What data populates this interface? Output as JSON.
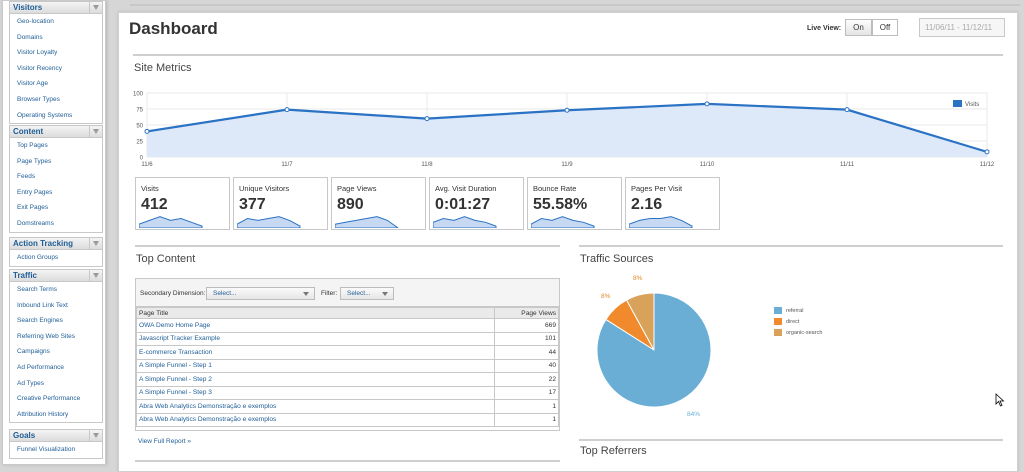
{
  "sidebar": {
    "groups": [
      {
        "title": "Visitors",
        "items": [
          "Geo-location",
          "Domains",
          "Visitor Loyalty",
          "Visitor Recency",
          "Visitor Age",
          "Browser Types",
          "Operating Systems"
        ]
      },
      {
        "title": "Content",
        "items": [
          "Top Pages",
          "Page Types",
          "Feeds",
          "Entry Pages",
          "Exit Pages",
          "Domstreams"
        ]
      },
      {
        "title": "Action Tracking",
        "items": [
          "Action Groups"
        ]
      },
      {
        "title": "Traffic",
        "items": [
          "Search Terms",
          "Inbound Link Text",
          "Search Engines",
          "Referring Web Sites",
          "Campaigns",
          "Ad Performance",
          "Ad Types",
          "Creative Performance",
          "Attribution History"
        ]
      },
      {
        "title": "Goals",
        "items": [
          "Funnel Visualization"
        ]
      }
    ]
  },
  "header": {
    "title": "Dashboard",
    "live_view_label": "Live View:",
    "on_label": "On",
    "off_label": "Off",
    "date_range": "11/06/11 - 11/12/11"
  },
  "site_metrics": {
    "title": "Site Metrics",
    "legend_label": "Visits"
  },
  "chart_data": {
    "type": "area",
    "x": [
      "11/6",
      "11/7",
      "11/8",
      "11/9",
      "11/10",
      "11/11",
      "11/12"
    ],
    "series": [
      {
        "name": "Visits",
        "values": [
          40,
          74,
          60,
          73,
          83,
          74,
          8
        ]
      }
    ],
    "ylim": [
      0,
      100
    ],
    "yticks": [
      0,
      25,
      50,
      75,
      100
    ],
    "grid": true,
    "legend_position": "top-right",
    "color": "#2a72c4"
  },
  "kpis": [
    {
      "label": "Visits",
      "value": "412"
    },
    {
      "label": "Unique Visitors",
      "value": "377"
    },
    {
      "label": "Page Views",
      "value": "890"
    },
    {
      "label": "Avg. Visit Duration",
      "value": "0:01:27"
    },
    {
      "label": "Bounce Rate",
      "value": "55.58%"
    },
    {
      "label": "Pages Per Visit",
      "value": "2.16"
    }
  ],
  "top_content": {
    "title": "Top Content",
    "secondary_dimension_label": "Secondary Dimension:",
    "secondary_select": "Select...",
    "filter_label": "Filter:",
    "filter_select": "Select...",
    "columns": [
      "Page Title",
      "Page Views"
    ],
    "rows": [
      {
        "title": "OWA Demo Home Page",
        "views": "669"
      },
      {
        "title": "Javascript Tracker Example",
        "views": "101"
      },
      {
        "title": "E-commerce Transaction",
        "views": "44"
      },
      {
        "title": "A Simple Funnel - Step 1",
        "views": "40"
      },
      {
        "title": "A Simple Funnel - Step 2",
        "views": "22"
      },
      {
        "title": "A Simple Funnel - Step 3",
        "views": "17"
      },
      {
        "title": "Abra Web Analytics Demonstração e exemplos",
        "views": "1"
      },
      {
        "title": "Abra Web Analytics Demonstração e exemplos",
        "views": "1"
      }
    ],
    "view_full_report": "View Full Report »"
  },
  "traffic_sources": {
    "title": "Traffic Sources",
    "chart": {
      "type": "pie",
      "slices": [
        {
          "label": "referral",
          "value": 84,
          "color": "#6aaed6",
          "display": "84%"
        },
        {
          "label": "direct",
          "value": 8,
          "color": "#f08a2c",
          "display": "8%"
        },
        {
          "label": "organic-search",
          "value": 8,
          "color": "#d9a25a",
          "display": "8%"
        }
      ]
    }
  },
  "top_referrers": {
    "title": "Top Referrers"
  }
}
